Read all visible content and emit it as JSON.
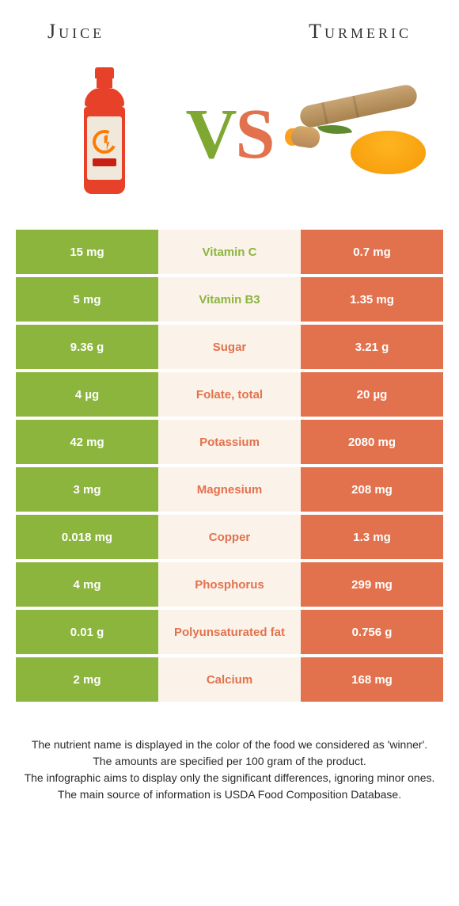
{
  "colors": {
    "left": "#8bb53d",
    "right": "#e2724d",
    "mid_bg": "#fbf3ea"
  },
  "header": {
    "left": "Juice",
    "right": "Turmeric"
  },
  "vs": {
    "v": "V",
    "s": "S"
  },
  "rows": [
    {
      "left": "15 mg",
      "label": "Vitamin C",
      "right": "0.7 mg",
      "winner": "left"
    },
    {
      "left": "5 mg",
      "label": "Vitamin B3",
      "right": "1.35 mg",
      "winner": "left"
    },
    {
      "left": "9.36 g",
      "label": "Sugar",
      "right": "3.21 g",
      "winner": "right"
    },
    {
      "left": "4 µg",
      "label": "Folate, total",
      "right": "20 µg",
      "winner": "right"
    },
    {
      "left": "42 mg",
      "label": "Potassium",
      "right": "2080 mg",
      "winner": "right"
    },
    {
      "left": "3 mg",
      "label": "Magnesium",
      "right": "208 mg",
      "winner": "right"
    },
    {
      "left": "0.018 mg",
      "label": "Copper",
      "right": "1.3 mg",
      "winner": "right"
    },
    {
      "left": "4 mg",
      "label": "Phosphorus",
      "right": "299 mg",
      "winner": "right"
    },
    {
      "left": "0.01 g",
      "label": "Polyunsaturated fat",
      "right": "0.756 g",
      "winner": "right"
    },
    {
      "left": "2 mg",
      "label": "Calcium",
      "right": "168 mg",
      "winner": "right"
    }
  ],
  "footer": {
    "l1": "The nutrient name is displayed in the color of the food we considered as 'winner'.",
    "l2": "The amounts are specified per 100 gram of the product.",
    "l3": "The infographic aims to display only the significant differences, ignoring minor ones.",
    "l4": "The main source of information is USDA Food Composition Database."
  }
}
